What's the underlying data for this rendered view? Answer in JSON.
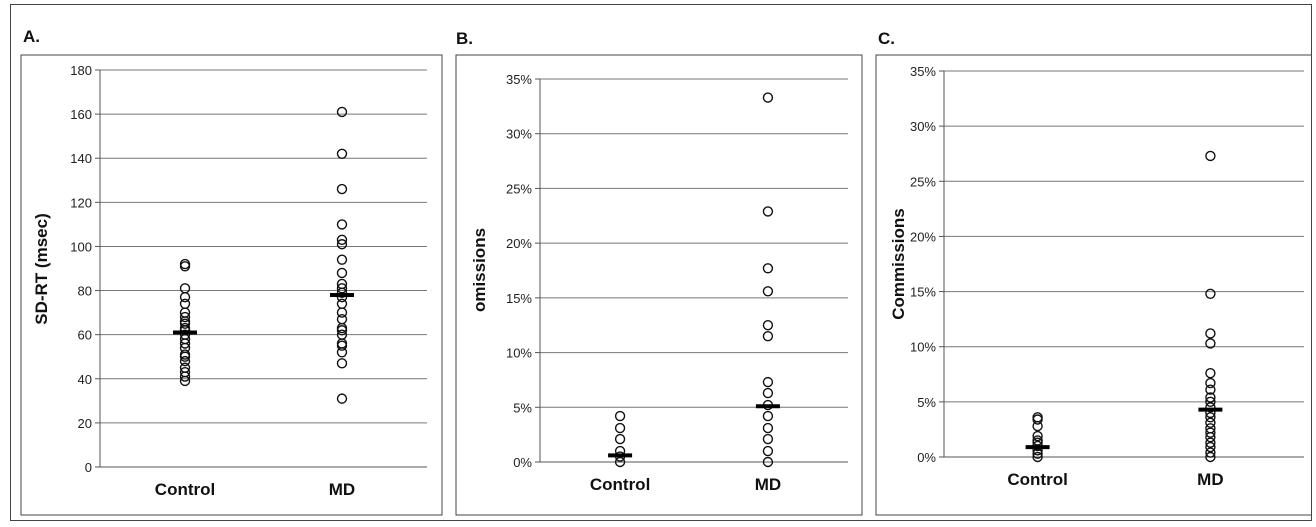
{
  "chart_data": [
    {
      "panel_label": "A.",
      "type": "scatter",
      "ylabel": "SD-RT (msec)",
      "categories": [
        "Control",
        "MD"
      ],
      "ylim": [
        0,
        180
      ],
      "yticks": [
        0,
        20,
        40,
        60,
        80,
        100,
        120,
        140,
        160,
        180
      ],
      "ytick_labels": [
        "0",
        "20",
        "40",
        "60",
        "80",
        "100",
        "120",
        "140",
        "160",
        "180"
      ],
      "grid": true,
      "series": [
        {
          "category": "Control",
          "values": [
            92,
            91,
            81,
            77,
            74,
            70,
            68,
            66,
            65,
            63,
            62,
            60,
            58,
            56,
            54,
            51,
            50,
            48,
            45,
            43,
            41,
            39
          ],
          "mean": 61
        },
        {
          "category": "MD",
          "values": [
            161,
            142,
            126,
            110,
            103,
            101,
            94,
            88,
            83,
            81,
            79,
            77,
            74,
            70,
            67,
            63,
            62,
            60,
            56,
            55,
            52,
            47,
            31
          ],
          "mean": 78
        }
      ]
    },
    {
      "panel_label": "B.",
      "type": "scatter",
      "ylabel": "omissions",
      "categories": [
        "Control",
        "MD"
      ],
      "ylim": [
        0,
        35
      ],
      "yticks": [
        0,
        5,
        10,
        15,
        20,
        25,
        30,
        35
      ],
      "ytick_labels": [
        "0%",
        "5%",
        "10%",
        "15%",
        "20%",
        "25%",
        "30%",
        "35%"
      ],
      "grid": true,
      "series": [
        {
          "category": "Control",
          "values": [
            4.2,
            3.1,
            2.1,
            1.0,
            0.5,
            0
          ],
          "mean": 0.6
        },
        {
          "category": "MD",
          "values": [
            33.3,
            22.9,
            17.7,
            15.6,
            12.5,
            11.5,
            7.3,
            6.3,
            5.2,
            4.2,
            3.1,
            2.1,
            1.0,
            0
          ],
          "mean": 5.1
        }
      ]
    },
    {
      "panel_label": "C.",
      "type": "scatter",
      "ylabel": "Commissions",
      "categories": [
        "Control",
        "MD"
      ],
      "ylim": [
        0,
        35
      ],
      "yticks": [
        0,
        5,
        10,
        15,
        20,
        25,
        30,
        35
      ],
      "ytick_labels": [
        "0%",
        "5%",
        "10%",
        "15%",
        "20%",
        "25%",
        "30%",
        "35%"
      ],
      "grid": true,
      "series": [
        {
          "category": "Control",
          "values": [
            3.6,
            3.4,
            2.8,
            1.9,
            1.5,
            1.3,
            1.0,
            0.6,
            0.3,
            0
          ],
          "mean": 0.9
        },
        {
          "category": "MD",
          "values": [
            27.3,
            14.8,
            11.2,
            10.3,
            7.6,
            6.7,
            6.1,
            5.4,
            5.0,
            4.5,
            4.0,
            3.6,
            3.1,
            2.6,
            2.2,
            1.8,
            1.3,
            0.9,
            0.4,
            0
          ],
          "mean": 4.3
        }
      ]
    }
  ]
}
